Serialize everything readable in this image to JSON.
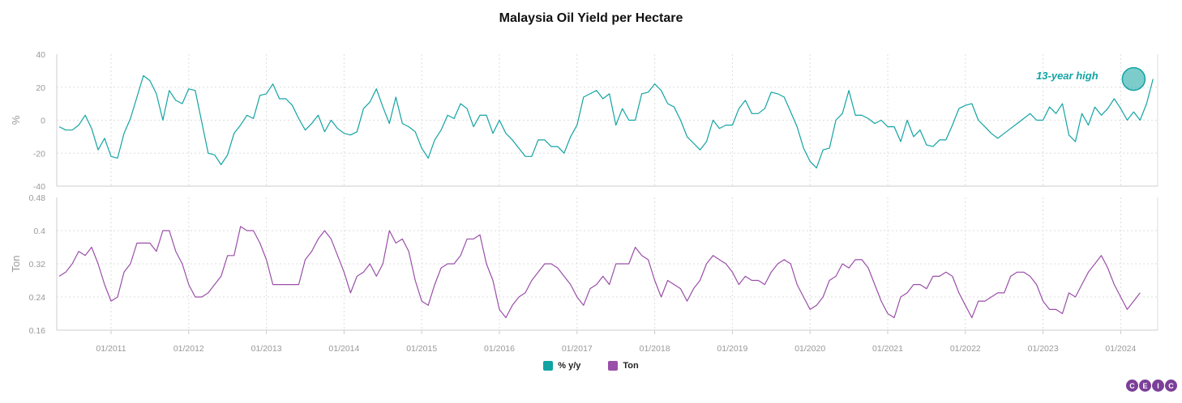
{
  "title": "Malaysia Oil Yield per Hectare",
  "colors": {
    "yoy": "#13a3a3",
    "ton": "#9a4fa8",
    "annotation": "#13a3a3",
    "grid": "#dddddd"
  },
  "legend": {
    "yoy": "% y/y",
    "ton": "Ton"
  },
  "annotation": "13-year high",
  "logo": [
    "C",
    "E",
    "I",
    "C"
  ],
  "chart_data": [
    {
      "type": "line",
      "ylabel": "%",
      "ylim": [
        -40,
        40
      ],
      "yticks": [
        "40",
        "20",
        "0",
        "-20",
        "-40"
      ],
      "grid": true,
      "x_start": "2010-05",
      "x_frequency": "monthly",
      "xtick_labels": [
        "01/2011",
        "01/2012",
        "01/2013",
        "01/2014",
        "01/2015",
        "01/2016",
        "01/2017",
        "01/2018",
        "01/2019",
        "01/2020",
        "01/2021",
        "01/2022",
        "01/2023",
        "01/2024"
      ],
      "series": [
        {
          "name": "% y/y",
          "values": [
            -4,
            -6,
            -6,
            -3,
            3,
            -5,
            -18,
            -11,
            -22,
            -23,
            -8,
            1,
            14,
            27,
            24,
            16,
            0,
            18,
            12,
            10,
            19,
            18,
            -1,
            -20,
            -21,
            -27,
            -21,
            -8,
            -3,
            3,
            1,
            15,
            16,
            22,
            13,
            13,
            9,
            1,
            -6,
            -2,
            3,
            -7,
            0,
            -5,
            -8,
            -9,
            -7,
            7,
            11,
            19,
            8,
            -2,
            14,
            -2,
            -4,
            -7,
            -17,
            -23,
            -12,
            -6,
            3,
            1,
            10,
            7,
            -4,
            3,
            3,
            -8,
            0,
            -8,
            -12,
            -17,
            -22,
            -22,
            -12,
            -12,
            -16,
            -16,
            -20,
            -10,
            -3,
            14,
            16,
            18,
            13,
            16,
            -3,
            7,
            0,
            0,
            16,
            17,
            22,
            18,
            10,
            8,
            0,
            -10,
            -14,
            -18,
            -13,
            0,
            -5,
            -3,
            -3,
            7,
            12,
            4,
            4,
            7,
            17,
            16,
            14,
            5,
            -4,
            -17,
            -25,
            -29,
            -18,
            -17,
            0,
            4,
            18,
            3,
            3,
            1,
            -2,
            0,
            -4,
            -4,
            -13,
            0,
            -10,
            -6,
            -15,
            -16,
            -12,
            -12,
            -3,
            7,
            9,
            10,
            0,
            -4,
            -8,
            -11,
            -8,
            -5,
            -2,
            1,
            4,
            0,
            0,
            8,
            4,
            10,
            -9,
            -13,
            4,
            -3,
            8,
            3,
            7,
            13,
            7,
            0,
            5,
            0,
            10,
            25
          ]
        }
      ],
      "highlight_point": {
        "x": "2024-03",
        "y": 25,
        "label": "13-year high"
      }
    },
    {
      "type": "line",
      "ylabel": "Ton",
      "ylim": [
        0.16,
        0.48
      ],
      "yticks": [
        "0.48",
        "0.4",
        "0.32",
        "0.24",
        "0.16"
      ],
      "grid": true,
      "x_start": "2010-05",
      "x_frequency": "monthly",
      "xtick_labels": [
        "01/2011",
        "01/2012",
        "01/2013",
        "01/2014",
        "01/2015",
        "01/2016",
        "01/2017",
        "01/2018",
        "01/2019",
        "01/2020",
        "01/2021",
        "01/2022",
        "01/2023",
        "01/2024"
      ],
      "series": [
        {
          "name": "Ton",
          "values": [
            0.29,
            0.3,
            0.32,
            0.35,
            0.34,
            0.36,
            0.32,
            0.27,
            0.23,
            0.24,
            0.3,
            0.32,
            0.37,
            0.37,
            0.37,
            0.35,
            0.4,
            0.4,
            0.35,
            0.32,
            0.27,
            0.24,
            0.24,
            0.25,
            0.27,
            0.29,
            0.34,
            0.34,
            0.41,
            0.4,
            0.4,
            0.37,
            0.33,
            0.27,
            0.27,
            0.27,
            0.27,
            0.27,
            0.33,
            0.35,
            0.38,
            0.4,
            0.38,
            0.34,
            0.3,
            0.25,
            0.29,
            0.3,
            0.32,
            0.29,
            0.32,
            0.4,
            0.37,
            0.38,
            0.35,
            0.28,
            0.23,
            0.22,
            0.27,
            0.31,
            0.32,
            0.32,
            0.34,
            0.38,
            0.38,
            0.39,
            0.32,
            0.28,
            0.21,
            0.19,
            0.22,
            0.24,
            0.25,
            0.28,
            0.3,
            0.32,
            0.32,
            0.31,
            0.29,
            0.27,
            0.24,
            0.22,
            0.26,
            0.27,
            0.29,
            0.27,
            0.32,
            0.32,
            0.32,
            0.36,
            0.34,
            0.33,
            0.28,
            0.24,
            0.28,
            0.27,
            0.26,
            0.23,
            0.26,
            0.28,
            0.32,
            0.34,
            0.33,
            0.32,
            0.3,
            0.27,
            0.29,
            0.28,
            0.28,
            0.27,
            0.3,
            0.32,
            0.33,
            0.32,
            0.27,
            0.24,
            0.21,
            0.22,
            0.24,
            0.28,
            0.29,
            0.32,
            0.31,
            0.33,
            0.33,
            0.31,
            0.27,
            0.23,
            0.2,
            0.19,
            0.24,
            0.25,
            0.27,
            0.27,
            0.26,
            0.29,
            0.29,
            0.3,
            0.29,
            0.25,
            0.22,
            0.19,
            0.23,
            0.23,
            0.24,
            0.25,
            0.25,
            0.29,
            0.3,
            0.3,
            0.29,
            0.27,
            0.23,
            0.21,
            0.21,
            0.2,
            0.25,
            0.24,
            0.27,
            0.3,
            0.32,
            0.34,
            0.31,
            0.27,
            0.24,
            0.21,
            0.23,
            0.25
          ]
        }
      ]
    }
  ]
}
